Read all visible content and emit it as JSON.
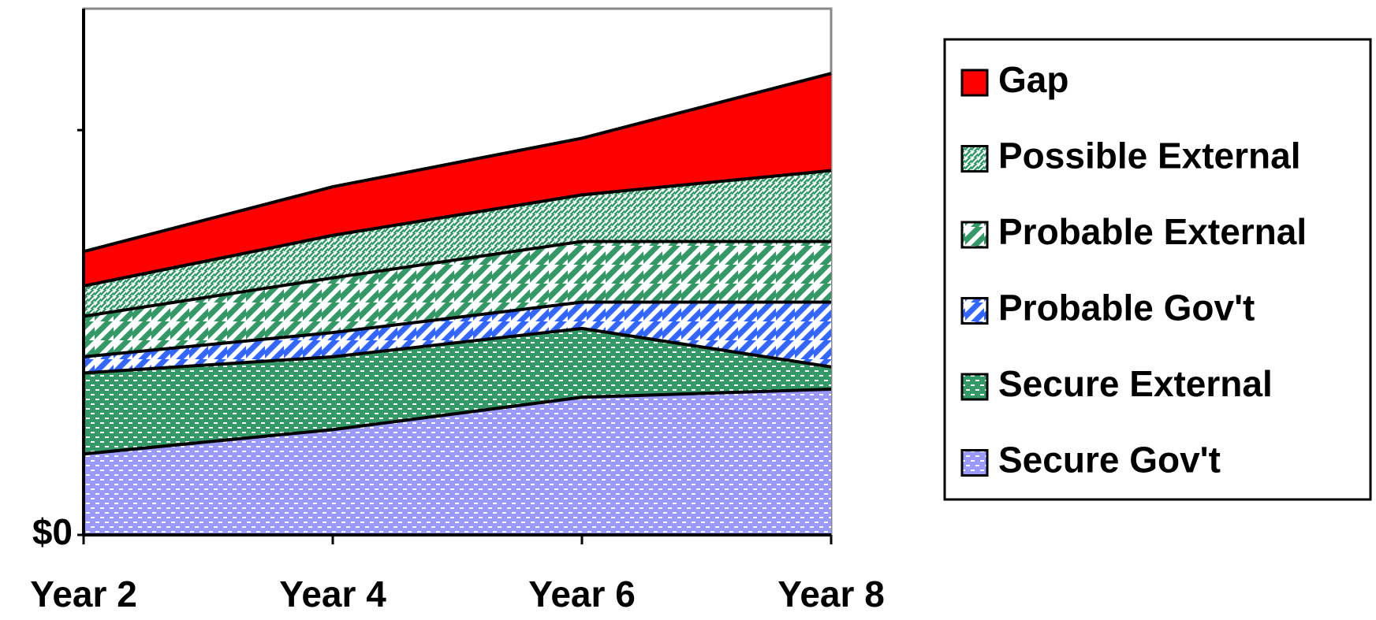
{
  "chart_data": {
    "type": "stacked-area",
    "categories": [
      "Year 2",
      "Year 4",
      "Year 6",
      "Year 8"
    ],
    "ylim": [
      0,
      130
    ],
    "yticks": [
      {
        "value": 0,
        "label": "$0"
      }
    ],
    "series": [
      {
        "name": "Secure Gov't",
        "color": "#9999ff",
        "pattern": "dashes",
        "values": [
          20,
          26,
          34,
          36
        ]
      },
      {
        "name": "Secure External",
        "color": "#339966",
        "pattern": "dashes",
        "values": [
          20,
          18,
          17,
          5.5
        ]
      },
      {
        "name": "Probable Gov't",
        "color": "#3366ff",
        "pattern": "wide-diagonal",
        "values": [
          4,
          6,
          6.5,
          16
        ]
      },
      {
        "name": "Probable External",
        "color": "#339966",
        "pattern": "wide-diagonal",
        "values": [
          10,
          13.5,
          15,
          15
        ]
      },
      {
        "name": "Possible External",
        "color": "#339966",
        "pattern": "fine-diagonal",
        "values": [
          7.5,
          10.5,
          11.5,
          17.5
        ]
      },
      {
        "name": "Gap",
        "color": "#ff0000",
        "pattern": "solid",
        "values": [
          8.5,
          12,
          14,
          24
        ]
      }
    ],
    "legend": "right"
  }
}
